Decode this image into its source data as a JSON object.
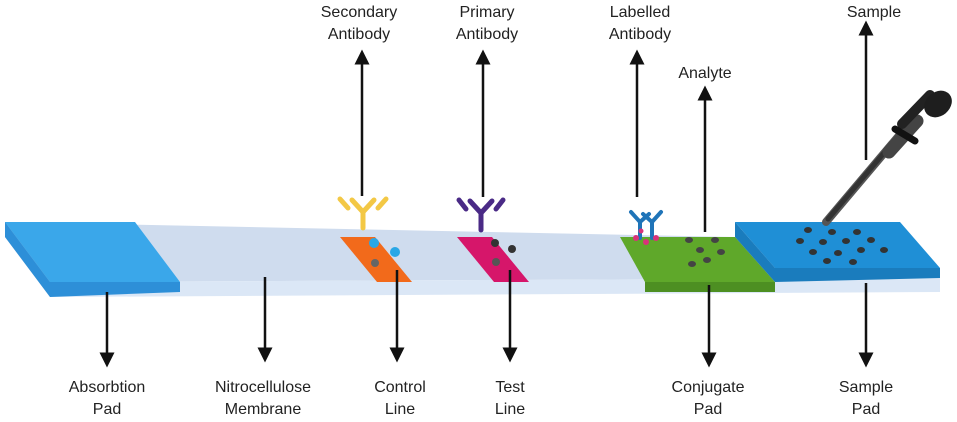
{
  "colors": {
    "absorption_pad": "#2d8fd8",
    "absorption_pad_top": "#3aa7ea",
    "membrane": "#cfdcee",
    "membrane_edge": "#a9bcd6",
    "strip_side": "#dbe7f6",
    "control_line": "#f26a1b",
    "test_line": "#d6166a",
    "conjugate_pad": "#5fa82a",
    "sample_pad": "#1f8fd6",
    "secondary_antibody": "#f3c845",
    "primary_antibody": "#4a2a86",
    "labelled_antibody": "#1f74b8",
    "label_particle": "#d9327a",
    "analyte_particle": "#555555",
    "arrow": "#111111"
  },
  "icons": {
    "antibody": "y-shaped-antibody-icon",
    "dropper": "pipette-dropper-icon",
    "particle": "analyte-particle-icon"
  },
  "labels": {
    "secondary_antibody": {
      "line1": "Secondary",
      "line2": "Antibody"
    },
    "primary_antibody": {
      "line1": "Primary",
      "line2": "Antibody"
    },
    "labelled_antibody": {
      "line1": "Labelled",
      "line2": "Antibody"
    },
    "analyte": {
      "line1": "Analyte"
    },
    "sample": {
      "line1": "Sample"
    },
    "absorption_pad": {
      "line1": "Absorbtion",
      "line2": "Pad"
    },
    "nitrocellulose_membrane": {
      "line1": "Nitrocellulose",
      "line2": "Membrane"
    },
    "control_line": {
      "line1": "Control",
      "line2": "Line"
    },
    "test_line": {
      "line1": "Test",
      "line2": "Line"
    },
    "conjugate_pad": {
      "line1": "Conjugate",
      "line2": "Pad"
    },
    "sample_pad": {
      "line1": "Sample",
      "line2": "Pad"
    }
  }
}
